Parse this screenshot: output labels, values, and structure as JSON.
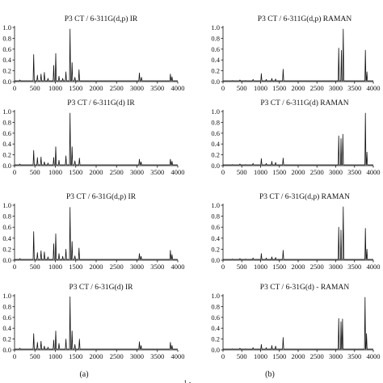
{
  "panel_labels": [
    "(a)",
    "(b)"
  ],
  "footer_fragment": "1 -",
  "chart_data": [
    {
      "type": "line",
      "title": "P3 CT / 6-311G(d,p) IR",
      "xlim": [
        0,
        4000
      ],
      "ylim": [
        0,
        1.0
      ],
      "x_ticks": [
        0,
        500,
        1000,
        1500,
        2000,
        2500,
        3000,
        3500,
        4000
      ],
      "y_ticks": [
        "0.0",
        "0.2",
        "0.4",
        "0.6",
        "0.8",
        "1.0"
      ],
      "peaks": [
        [
          130,
          0.03
        ],
        [
          470,
          0.5
        ],
        [
          560,
          0.12
        ],
        [
          650,
          0.14
        ],
        [
          730,
          0.17
        ],
        [
          820,
          0.06
        ],
        [
          960,
          0.3
        ],
        [
          1010,
          0.52
        ],
        [
          1090,
          0.1
        ],
        [
          1180,
          0.06
        ],
        [
          1260,
          0.18
        ],
        [
          1360,
          0.97
        ],
        [
          1410,
          0.35
        ],
        [
          1480,
          0.08
        ],
        [
          1580,
          0.22
        ],
        [
          3060,
          0.16
        ],
        [
          3110,
          0.08
        ],
        [
          3820,
          0.14
        ],
        [
          3860,
          0.09
        ]
      ]
    },
    {
      "type": "line",
      "title": "P3 CT / 6-311G(d) IR",
      "xlim": [
        0,
        4000
      ],
      "ylim": [
        0,
        1.0
      ],
      "x_ticks": [
        0,
        500,
        1000,
        1500,
        2000,
        2500,
        3000,
        3500,
        4000
      ],
      "y_ticks": [
        "0.0",
        "0.2",
        "0.4",
        "0.6",
        "0.8",
        "1.0"
      ],
      "peaks": [
        [
          130,
          0.03
        ],
        [
          470,
          0.28
        ],
        [
          560,
          0.15
        ],
        [
          650,
          0.16
        ],
        [
          730,
          0.07
        ],
        [
          820,
          0.05
        ],
        [
          960,
          0.15
        ],
        [
          1010,
          0.35
        ],
        [
          1090,
          0.1
        ],
        [
          1260,
          0.18
        ],
        [
          1360,
          0.97
        ],
        [
          1410,
          0.35
        ],
        [
          1480,
          0.09
        ],
        [
          1590,
          0.14
        ],
        [
          3060,
          0.12
        ],
        [
          3100,
          0.07
        ],
        [
          3820,
          0.12
        ],
        [
          3860,
          0.08
        ]
      ]
    },
    {
      "type": "line",
      "title": "P3 CT / 6-31G(d,p) IR",
      "xlim": [
        0,
        4000
      ],
      "ylim": [
        0,
        1.0
      ],
      "x_ticks": [
        0,
        500,
        1000,
        1500,
        2000,
        2500,
        3000,
        3500,
        4000
      ],
      "y_ticks": [
        "0.0",
        "0.2",
        "0.4",
        "0.6",
        "0.8",
        "1.0"
      ],
      "peaks": [
        [
          130,
          0.03
        ],
        [
          470,
          0.52
        ],
        [
          560,
          0.14
        ],
        [
          650,
          0.17
        ],
        [
          730,
          0.15
        ],
        [
          820,
          0.06
        ],
        [
          960,
          0.3
        ],
        [
          1010,
          0.48
        ],
        [
          1090,
          0.12
        ],
        [
          1180,
          0.07
        ],
        [
          1260,
          0.2
        ],
        [
          1360,
          0.96
        ],
        [
          1410,
          0.34
        ],
        [
          1480,
          0.08
        ],
        [
          1580,
          0.22
        ],
        [
          3060,
          0.12
        ],
        [
          3100,
          0.07
        ],
        [
          3820,
          0.18
        ],
        [
          3860,
          0.1
        ]
      ]
    },
    {
      "type": "line",
      "title": "P3 CT / 6-31G(d) IR",
      "xlim": [
        0,
        4000
      ],
      "ylim": [
        0,
        1.0
      ],
      "x_ticks": [
        0,
        500,
        1000,
        1500,
        2000,
        2500,
        3000,
        3500,
        4000
      ],
      "y_ticks": [
        "0.0",
        "0.2",
        "0.4",
        "0.6",
        "0.8",
        "1.0"
      ],
      "peaks": [
        [
          130,
          0.03
        ],
        [
          470,
          0.3
        ],
        [
          560,
          0.14
        ],
        [
          650,
          0.16
        ],
        [
          730,
          0.07
        ],
        [
          820,
          0.05
        ],
        [
          960,
          0.18
        ],
        [
          1010,
          0.35
        ],
        [
          1090,
          0.12
        ],
        [
          1260,
          0.2
        ],
        [
          1360,
          0.98
        ],
        [
          1410,
          0.35
        ],
        [
          1480,
          0.1
        ],
        [
          1590,
          0.2
        ],
        [
          3060,
          0.15
        ],
        [
          3100,
          0.08
        ],
        [
          3820,
          0.14
        ],
        [
          3860,
          0.08
        ]
      ]
    },
    {
      "type": "line",
      "title": "P3 CT / 6-311G(d,p) RAMAN",
      "xlim": [
        0,
        4000
      ],
      "ylim": [
        0,
        1.0
      ],
      "x_ticks": [
        0,
        500,
        1000,
        1500,
        2000,
        2500,
        3000,
        3500,
        4000
      ],
      "y_ticks": [
        "0.0",
        "0.2",
        "0.4",
        "0.6",
        "0.8",
        "1.0"
      ],
      "peaks": [
        [
          250,
          0.02
        ],
        [
          450,
          0.03
        ],
        [
          600,
          0.02
        ],
        [
          800,
          0.04
        ],
        [
          1020,
          0.15
        ],
        [
          1150,
          0.04
        ],
        [
          1300,
          0.06
        ],
        [
          1400,
          0.05
        ],
        [
          1600,
          0.23
        ],
        [
          3080,
          0.62
        ],
        [
          3150,
          0.58
        ],
        [
          3200,
          0.97
        ],
        [
          3790,
          0.58
        ],
        [
          3830,
          0.18
        ]
      ]
    },
    {
      "type": "line",
      "title": "P3 CT / 6-311G(d) RAMAN",
      "xlim": [
        0,
        4000
      ],
      "ylim": [
        0,
        1.0
      ],
      "x_ticks": [
        0,
        500,
        1000,
        1500,
        2000,
        2500,
        3000,
        3500,
        4000
      ],
      "y_ticks": [
        "0.0",
        "0.2",
        "0.4",
        "0.6",
        "0.8",
        "1.0"
      ],
      "peaks": [
        [
          250,
          0.02
        ],
        [
          450,
          0.03
        ],
        [
          600,
          0.02
        ],
        [
          800,
          0.04
        ],
        [
          1020,
          0.13
        ],
        [
          1150,
          0.04
        ],
        [
          1300,
          0.08
        ],
        [
          1400,
          0.06
        ],
        [
          1600,
          0.14
        ],
        [
          3080,
          0.55
        ],
        [
          3140,
          0.5
        ],
        [
          3190,
          0.58
        ],
        [
          3790,
          0.97
        ],
        [
          3830,
          0.25
        ]
      ]
    },
    {
      "type": "line",
      "title": "P3 CT / 6-31G(d,p) RAMAN",
      "xlim": [
        0,
        4000
      ],
      "ylim": [
        0,
        1.0
      ],
      "x_ticks": [
        0,
        500,
        1000,
        1500,
        2000,
        2500,
        3000,
        3500,
        4000
      ],
      "y_ticks": [
        "0.0",
        "0.2",
        "0.4",
        "0.6",
        "0.8",
        "1.0"
      ],
      "peaks": [
        [
          250,
          0.02
        ],
        [
          450,
          0.03
        ],
        [
          600,
          0.02
        ],
        [
          800,
          0.04
        ],
        [
          1020,
          0.12
        ],
        [
          1150,
          0.04
        ],
        [
          1300,
          0.06
        ],
        [
          1400,
          0.05
        ],
        [
          1600,
          0.18
        ],
        [
          3080,
          0.6
        ],
        [
          3140,
          0.55
        ],
        [
          3200,
          0.97
        ],
        [
          3790,
          0.58
        ],
        [
          3830,
          0.2
        ]
      ]
    },
    {
      "type": "line",
      "title": "P3 CT / 6-31G(d) - RAMAN",
      "xlim": [
        0,
        4000
      ],
      "ylim": [
        0,
        1.0
      ],
      "x_ticks": [
        0,
        500,
        1000,
        1500,
        2000,
        2500,
        3000,
        3500,
        4000
      ],
      "y_ticks": [
        "0.0",
        "0.2",
        "0.4",
        "0.6",
        "0.8",
        "1.0"
      ],
      "peaks": [
        [
          250,
          0.02
        ],
        [
          450,
          0.03
        ],
        [
          600,
          0.02
        ],
        [
          800,
          0.04
        ],
        [
          1020,
          0.1
        ],
        [
          1150,
          0.04
        ],
        [
          1300,
          0.08
        ],
        [
          1400,
          0.07
        ],
        [
          1600,
          0.23
        ],
        [
          3080,
          0.58
        ],
        [
          3140,
          0.52
        ],
        [
          3180,
          0.57
        ],
        [
          3780,
          0.97
        ],
        [
          3820,
          0.3
        ]
      ]
    }
  ]
}
